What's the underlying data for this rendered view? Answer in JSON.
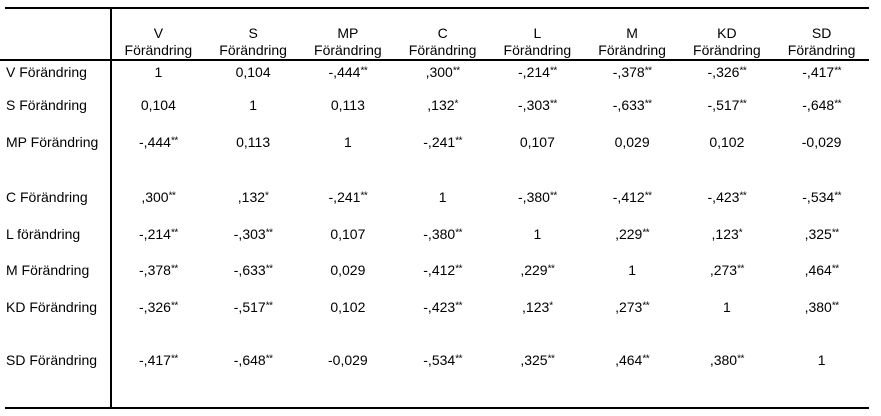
{
  "colors": {
    "background": "#ffffff",
    "text": "#000000",
    "rule": "#000000"
  },
  "chart_data": {
    "type": "table",
    "column_headers": [
      {
        "party": "V",
        "sub": "Förändring"
      },
      {
        "party": "S",
        "sub": "Förändring"
      },
      {
        "party": "MP",
        "sub": "Förändring"
      },
      {
        "party": "C",
        "sub": "Förändring"
      },
      {
        "party": "L",
        "sub": "Förändring"
      },
      {
        "party": "M",
        "sub": "Förändring"
      },
      {
        "party": "KD",
        "sub": "Förändring"
      },
      {
        "party": "SD",
        "sub": "Förändring"
      }
    ],
    "rows": [
      {
        "label": "V Förändring",
        "values": [
          "1",
          "0,104",
          "-,444**",
          ",300**",
          "-,214**",
          "-,378**",
          "-,326**",
          "-,417**"
        ]
      },
      {
        "label": "S Förändring",
        "values": [
          "0,104",
          "1",
          "0,113",
          ",132*",
          "-,303**",
          "-,633**",
          "-,517**",
          "-,648**"
        ]
      },
      {
        "label": "MP Förändring",
        "values": [
          "-,444**",
          "0,113",
          "1",
          "-,241**",
          "0,107",
          "0,029",
          "0,102",
          "-0,029"
        ]
      },
      {
        "label": "C Förändring",
        "values": [
          ",300**",
          ",132*",
          "-,241**",
          "1",
          "-,380**",
          "-,412**",
          "-,423**",
          "-,534**"
        ]
      },
      {
        "label": "L förändring",
        "values": [
          "-,214**",
          "-,303**",
          "0,107",
          "-,380**",
          "1",
          ",229**",
          ",123*",
          ",325**"
        ]
      },
      {
        "label": "M Förändring",
        "values": [
          "-,378**",
          "-,633**",
          "0,029",
          "-,412**",
          ",229**",
          "1",
          ",273**",
          ",464**"
        ]
      },
      {
        "label": "KD Förändring",
        "values": [
          "-,326**",
          "-,517**",
          "0,102",
          "-,423**",
          ",123*",
          ",273**",
          "1",
          ",380**"
        ]
      },
      {
        "label": "SD Förändring",
        "values": [
          "-,417**",
          "-,648**",
          "-0,029",
          "-,534**",
          ",325**",
          ",464**",
          ",380**",
          "1"
        ]
      }
    ]
  }
}
